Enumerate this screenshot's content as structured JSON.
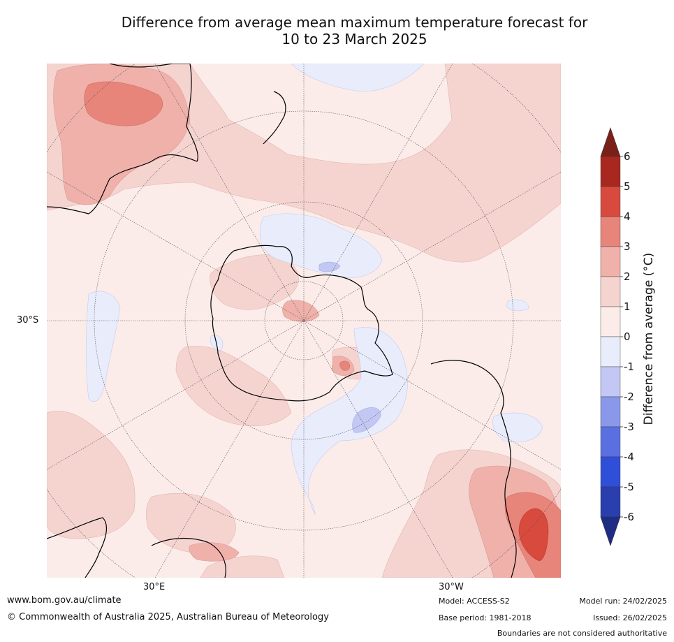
{
  "title": {
    "line1": "Difference from average mean maximum temperature forecast for",
    "line2": "10 to 23 March 2025"
  },
  "map": {
    "lat_label": "30°S",
    "lon_labels": [
      "30°E",
      "30°W"
    ]
  },
  "colorbar": {
    "label": "Difference from average (°C)",
    "ticks": [
      "6",
      "5",
      "4",
      "3",
      "2",
      "1",
      "0",
      "-1",
      "-2",
      "-3",
      "-4",
      "-5",
      "-6"
    ],
    "colors": [
      "#7b2019",
      "#a8281f",
      "#d84a3e",
      "#e8857a",
      "#efb1aa",
      "#f5d4d0",
      "#fbece9",
      "#e9ecfb",
      "#c2c8f3",
      "#8a98ea",
      "#5a6fe0",
      "#2f4fd8",
      "#2a3fae",
      "#1f2c86"
    ]
  },
  "colors": {
    "ocean_base": "#fbece9",
    "warm1": "#f5d4d0",
    "warm2": "#efb1aa",
    "warm3": "#e8857a",
    "warm4": "#d84a3e",
    "cool1": "#e9ecfb",
    "cool2": "#c2c8f3",
    "cool3": "#8a98ea"
  },
  "footer": {
    "website": "www.bom.gov.au/climate",
    "copyright": "© Commonwealth of Australia 2025, Australian Bureau of Meteorology",
    "model": "Model: ACCESS-S2",
    "base_period": "Base period: 1981-2018",
    "model_run": "Model run: 24/02/2025",
    "issued": "Issued: 26/02/2025",
    "disclaimer": "Boundaries are not considered authoritative"
  }
}
